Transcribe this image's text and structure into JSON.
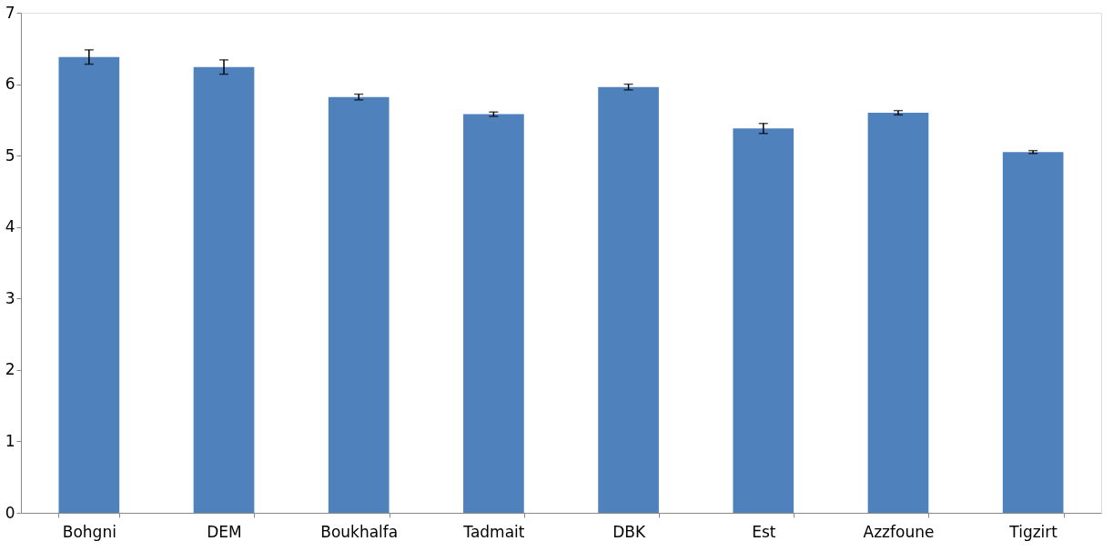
{
  "chart_data": {
    "type": "bar",
    "categories": [
      "Bohgni",
      "DEM",
      "Boukhalfa",
      "Tadmait",
      "DBK",
      "Est",
      "Azzfoune",
      "Tigzirt"
    ],
    "values": [
      6.38,
      6.24,
      5.82,
      5.58,
      5.96,
      5.38,
      5.6,
      5.05
    ],
    "errors": [
      0.1,
      0.1,
      0.04,
      0.03,
      0.04,
      0.07,
      0.03,
      0.02
    ],
    "color": "#4f81bd",
    "ylim": [
      0,
      7
    ],
    "yticks": [
      0,
      1,
      2,
      3,
      4,
      5,
      6,
      7
    ],
    "grid": false
  }
}
